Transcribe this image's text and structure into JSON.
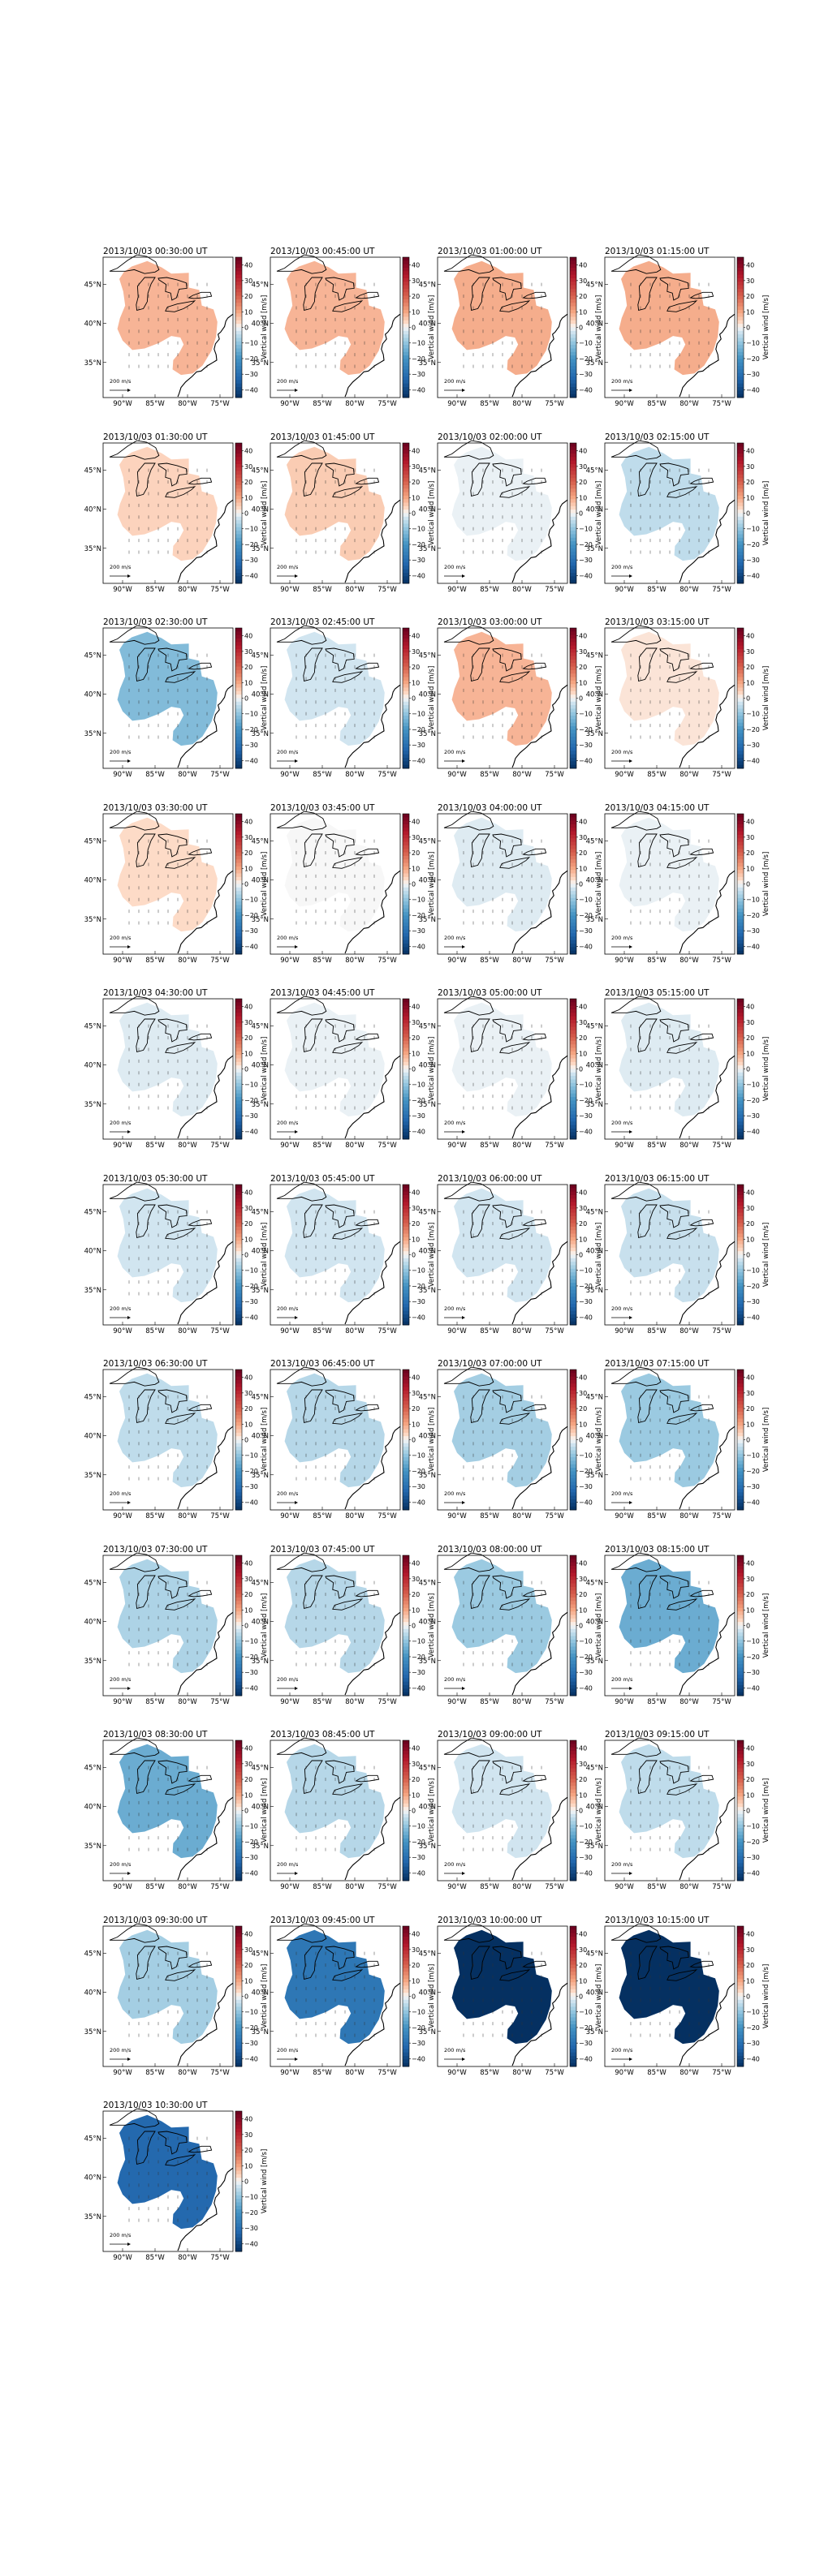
{
  "figure": {
    "colorbar_label": "Vertical wind [m/s]",
    "colorbar_ticks": [
      40,
      30,
      20,
      10,
      0,
      -10,
      -20,
      -30,
      -40
    ],
    "xticks": [
      "90°W",
      "85°W",
      "80°W",
      "75°W"
    ],
    "yticks": [
      "45°N",
      "40°N",
      "35°N"
    ],
    "ref_label": "200 m/s",
    "colors": {
      "negative": "#053061",
      "neutral": "#f7f7f7",
      "positive": "#67001f"
    }
  },
  "chart_data": {
    "type": "heatmap",
    "value_range": [
      -45,
      45
    ],
    "panels": [
      {
        "title": "2013/10/03 00:30:00 UT",
        "value": 8
      },
      {
        "title": "2013/10/03 00:45:00 UT",
        "value": 8
      },
      {
        "title": "2013/10/03 01:00:00 UT",
        "value": 9
      },
      {
        "title": "2013/10/03 01:15:00 UT",
        "value": 9
      },
      {
        "title": "2013/10/03 01:30:00 UT",
        "value": 4
      },
      {
        "title": "2013/10/03 01:45:00 UT",
        "value": 5
      },
      {
        "title": "2013/10/03 02:00:00 UT",
        "value": -1
      },
      {
        "title": "2013/10/03 02:15:00 UT",
        "value": -5
      },
      {
        "title": "2013/10/03 02:30:00 UT",
        "value": -12
      },
      {
        "title": "2013/10/03 02:45:00 UT",
        "value": -3
      },
      {
        "title": "2013/10/03 03:00:00 UT",
        "value": 8
      },
      {
        "title": "2013/10/03 03:15:00 UT",
        "value": 2
      },
      {
        "title": "2013/10/03 03:30:00 UT",
        "value": 3
      },
      {
        "title": "2013/10/03 03:45:00 UT",
        "value": 0
      },
      {
        "title": "2013/10/03 04:00:00 UT",
        "value": -2
      },
      {
        "title": "2013/10/03 04:15:00 UT",
        "value": -1
      },
      {
        "title": "2013/10/03 04:30:00 UT",
        "value": -2
      },
      {
        "title": "2013/10/03 04:45:00 UT",
        "value": -1
      },
      {
        "title": "2013/10/03 05:00:00 UT",
        "value": -1
      },
      {
        "title": "2013/10/03 05:15:00 UT",
        "value": -2
      },
      {
        "title": "2013/10/03 05:30:00 UT",
        "value": -3
      },
      {
        "title": "2013/10/03 05:45:00 UT",
        "value": -3
      },
      {
        "title": "2013/10/03 06:00:00 UT",
        "value": -3
      },
      {
        "title": "2013/10/03 06:15:00 UT",
        "value": -4
      },
      {
        "title": "2013/10/03 06:30:00 UT",
        "value": -5
      },
      {
        "title": "2013/10/03 06:45:00 UT",
        "value": -6
      },
      {
        "title": "2013/10/03 07:00:00 UT",
        "value": -8
      },
      {
        "title": "2013/10/03 07:15:00 UT",
        "value": -9
      },
      {
        "title": "2013/10/03 07:30:00 UT",
        "value": -7
      },
      {
        "title": "2013/10/03 07:45:00 UT",
        "value": -6
      },
      {
        "title": "2013/10/03 08:00:00 UT",
        "value": -9
      },
      {
        "title": "2013/10/03 08:15:00 UT",
        "value": -15
      },
      {
        "title": "2013/10/03 08:30:00 UT",
        "value": -15
      },
      {
        "title": "2013/10/03 08:45:00 UT",
        "value": -6
      },
      {
        "title": "2013/10/03 09:00:00 UT",
        "value": -3
      },
      {
        "title": "2013/10/03 09:15:00 UT",
        "value": -5
      },
      {
        "title": "2013/10/03 09:30:00 UT",
        "value": -8
      },
      {
        "title": "2013/10/03 09:45:00 UT",
        "value": -28
      },
      {
        "title": "2013/10/03 10:00:00 UT",
        "value": -45
      },
      {
        "title": "2013/10/03 10:15:00 UT",
        "value": -45
      },
      {
        "title": "2013/10/03 10:30:00 UT",
        "value": -32
      }
    ]
  }
}
